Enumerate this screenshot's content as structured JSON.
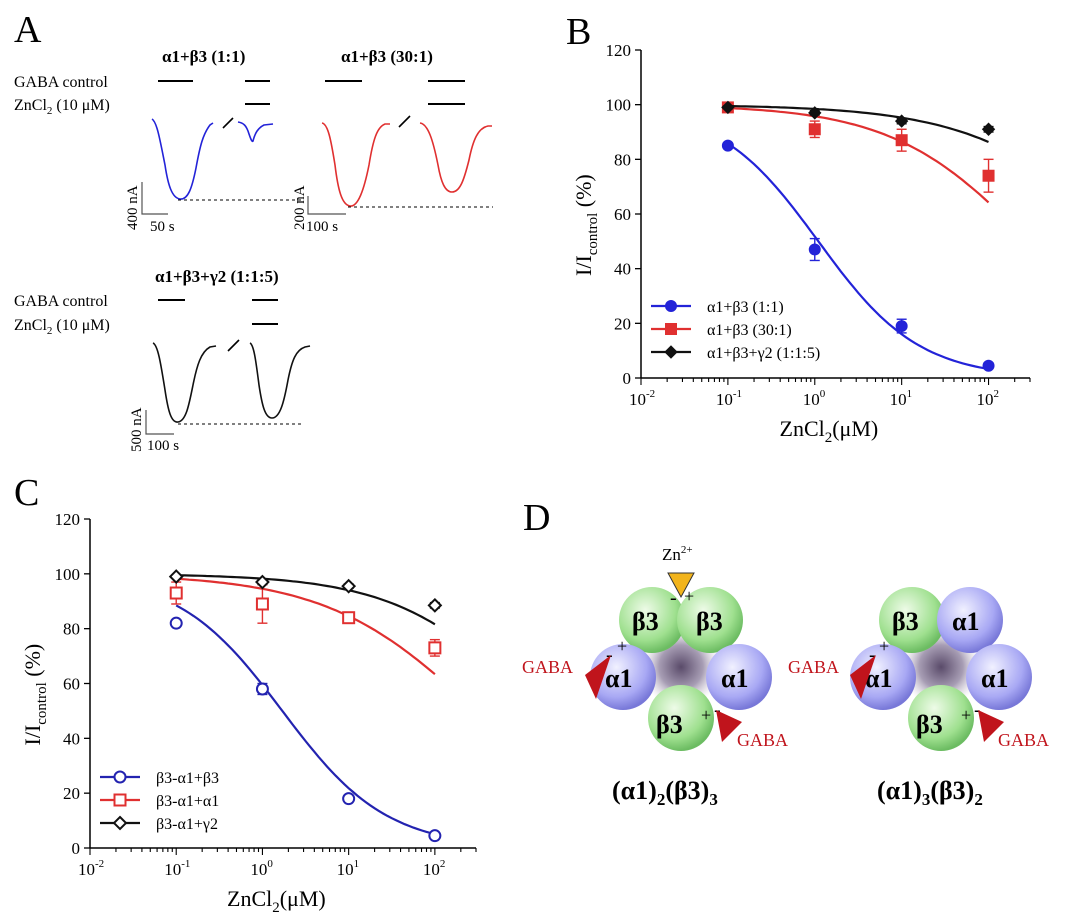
{
  "panels": {
    "A": {
      "letter": "A",
      "groups": [
        {
          "title": "α1+β3 (1:1)",
          "color": "#2323d8",
          "scale_y": "400 nA",
          "scale_x": "50 s"
        },
        {
          "title": "α1+β3 (30:1)",
          "color": "#e03030",
          "scale_y": "200 nA",
          "scale_x": "100 s"
        },
        {
          "title": "α1+β3+γ2 (1:1:5)",
          "color": "#111111",
          "scale_y": "500 nA",
          "scale_x": "100 s"
        }
      ],
      "label_gaba": "GABA control",
      "label_zn_prefix": "ZnCl",
      "label_zn_sub": "2",
      "label_zn_suffix": " (10 μM)"
    },
    "D": {
      "letter": "D",
      "zn_label": "Zn",
      "zn_sup": "2+",
      "gaba": "GABA",
      "beta": "β3",
      "alpha": "α1",
      "plus": "+",
      "minus": "-",
      "stoich_left": {
        "a": "(α1)",
        "a_sub": "2",
        "b": "(β3)",
        "b_sub": "3"
      },
      "stoich_right": {
        "a": "(α1)",
        "a_sub": "3",
        "b": "(β3)",
        "b_sub": "2"
      }
    }
  },
  "chart_data": [
    {
      "panel": "B",
      "type": "scatter",
      "xscale": "log",
      "ylabel_main": "I/I",
      "ylabel_sub": "control",
      "ylabel_end": " (%)",
      "xlabel_main": "ZnCl",
      "xlabel_sub": "2",
      "xlabel_end": "(μM)",
      "xlim": [
        0.01,
        300
      ],
      "ylim": [
        0,
        120
      ],
      "yticks": [
        "0",
        "20",
        "40",
        "60",
        "80",
        "100",
        "120"
      ],
      "xticks": [
        {
          "base": "10",
          "exp": "-2"
        },
        {
          "base": "10",
          "exp": "-1"
        },
        {
          "base": "10",
          "exp": "0"
        },
        {
          "base": "10",
          "exp": "1"
        },
        {
          "base": "10",
          "exp": "2"
        }
      ],
      "legend_position": "bottom-left",
      "series": [
        {
          "name": "α1+β3 (1:1)",
          "color": "#2323d8",
          "marker": "circle",
          "filled": true,
          "x": [
            0.1,
            1,
            10,
            100
          ],
          "y": [
            85,
            47,
            19,
            4.5
          ],
          "err": [
            0,
            4,
            2.5,
            1
          ],
          "fit": {
            "top": 100,
            "ic50": 1.1,
            "hill": 0.75
          }
        },
        {
          "name": "α1+β3 (30:1)",
          "color": "#e03030",
          "marker": "square",
          "filled": true,
          "x": [
            0.1,
            1,
            10,
            100
          ],
          "y": [
            99,
            91,
            87,
            74
          ],
          "err": [
            1,
            3,
            4,
            6
          ],
          "fit": {
            "top": 100,
            "ic50": 290,
            "hill": 0.55
          }
        },
        {
          "name": "α1+β3+γ2 (1:1:5)",
          "color": "#111111",
          "marker": "diamond",
          "filled": true,
          "x": [
            0.1,
            1,
            10,
            100
          ],
          "y": [
            99,
            97,
            94,
            91
          ],
          "err": [
            0.5,
            0.8,
            1,
            1
          ],
          "fit": {
            "top": 100,
            "ic50": 4000,
            "hill": 0.5
          }
        }
      ]
    },
    {
      "panel": "C",
      "type": "scatter",
      "xscale": "log",
      "ylabel_main": "I/I",
      "ylabel_sub": "control",
      "ylabel_end": " (%)",
      "xlabel_main": "ZnCl",
      "xlabel_sub": "2",
      "xlabel_end": "(μM)",
      "xlim": [
        0.01,
        300
      ],
      "ylim": [
        0,
        120
      ],
      "yticks": [
        "0",
        "20",
        "40",
        "60",
        "80",
        "100",
        "120"
      ],
      "xticks": [
        {
          "base": "10",
          "exp": "-2"
        },
        {
          "base": "10",
          "exp": "-1"
        },
        {
          "base": "10",
          "exp": "0"
        },
        {
          "base": "10",
          "exp": "1"
        },
        {
          "base": "10",
          "exp": "2"
        }
      ],
      "legend_position": "bottom-left",
      "series": [
        {
          "name": "β3-α1+β3",
          "color": "#2323b0",
          "marker": "circle",
          "filled": false,
          "x": [
            0.1,
            1,
            10,
            100
          ],
          "y": [
            82,
            58,
            18,
            4.5
          ],
          "err": [
            1,
            2,
            1,
            0.8
          ],
          "fit": {
            "top": 100,
            "ic50": 1.7,
            "hill": 0.72
          }
        },
        {
          "name": "β3-α1+α1",
          "color": "#e03030",
          "marker": "square",
          "filled": false,
          "x": [
            0.1,
            1,
            10,
            100
          ],
          "y": [
            93,
            89,
            84,
            73
          ],
          "err": [
            4,
            7,
            1.5,
            3
          ],
          "fit": {
            "top": 100,
            "ic50": 300,
            "hill": 0.5
          }
        },
        {
          "name": "β3-α1+γ2",
          "color": "#111111",
          "marker": "diamond",
          "filled": false,
          "x": [
            0.1,
            1,
            10,
            100
          ],
          "y": [
            99,
            97,
            95.5,
            88.5
          ],
          "err": [
            0.5,
            0.8,
            0.8,
            1
          ],
          "fit": {
            "top": 100,
            "ic50": 1500,
            "hill": 0.55
          }
        }
      ]
    }
  ]
}
